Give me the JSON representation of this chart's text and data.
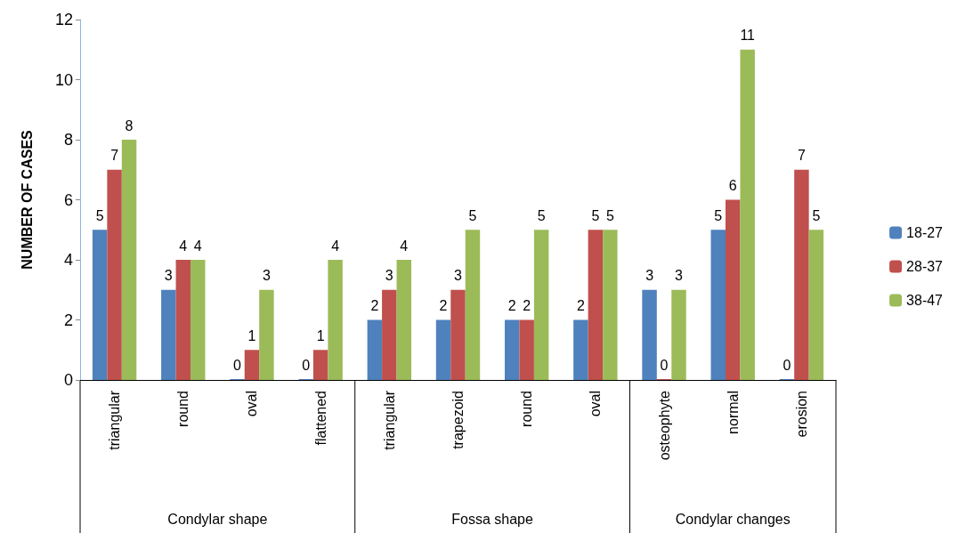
{
  "chart_data": {
    "type": "bar",
    "ylabel": "NUMBER OF CASES",
    "categories": [
      "triangular",
      "round",
      "oval",
      "flattened",
      "triangular",
      "trapezoid",
      "round",
      "oval",
      "osteophyte",
      "normal",
      "erosion"
    ],
    "series": [
      {
        "name": "18-27",
        "color": "#4f81bd",
        "values": [
          5,
          3,
          0,
          0,
          2,
          2,
          2,
          2,
          3,
          5,
          0
        ]
      },
      {
        "name": "28-37",
        "color": "#c0504d",
        "values": [
          7,
          4,
          1,
          1,
          3,
          3,
          2,
          5,
          0,
          6,
          7
        ]
      },
      {
        "name": "38-47",
        "color": "#9bbb59",
        "values": [
          8,
          4,
          3,
          4,
          4,
          5,
          5,
          5,
          3,
          11,
          5
        ]
      }
    ],
    "ylim": [
      0,
      12
    ],
    "yticks": [
      0,
      2,
      4,
      6,
      8,
      10,
      12
    ],
    "grid": false,
    "legend": "right",
    "data_labels": true,
    "annotations": [
      "Condylar shape",
      "Fossa shape",
      "Condylar changes"
    ]
  }
}
